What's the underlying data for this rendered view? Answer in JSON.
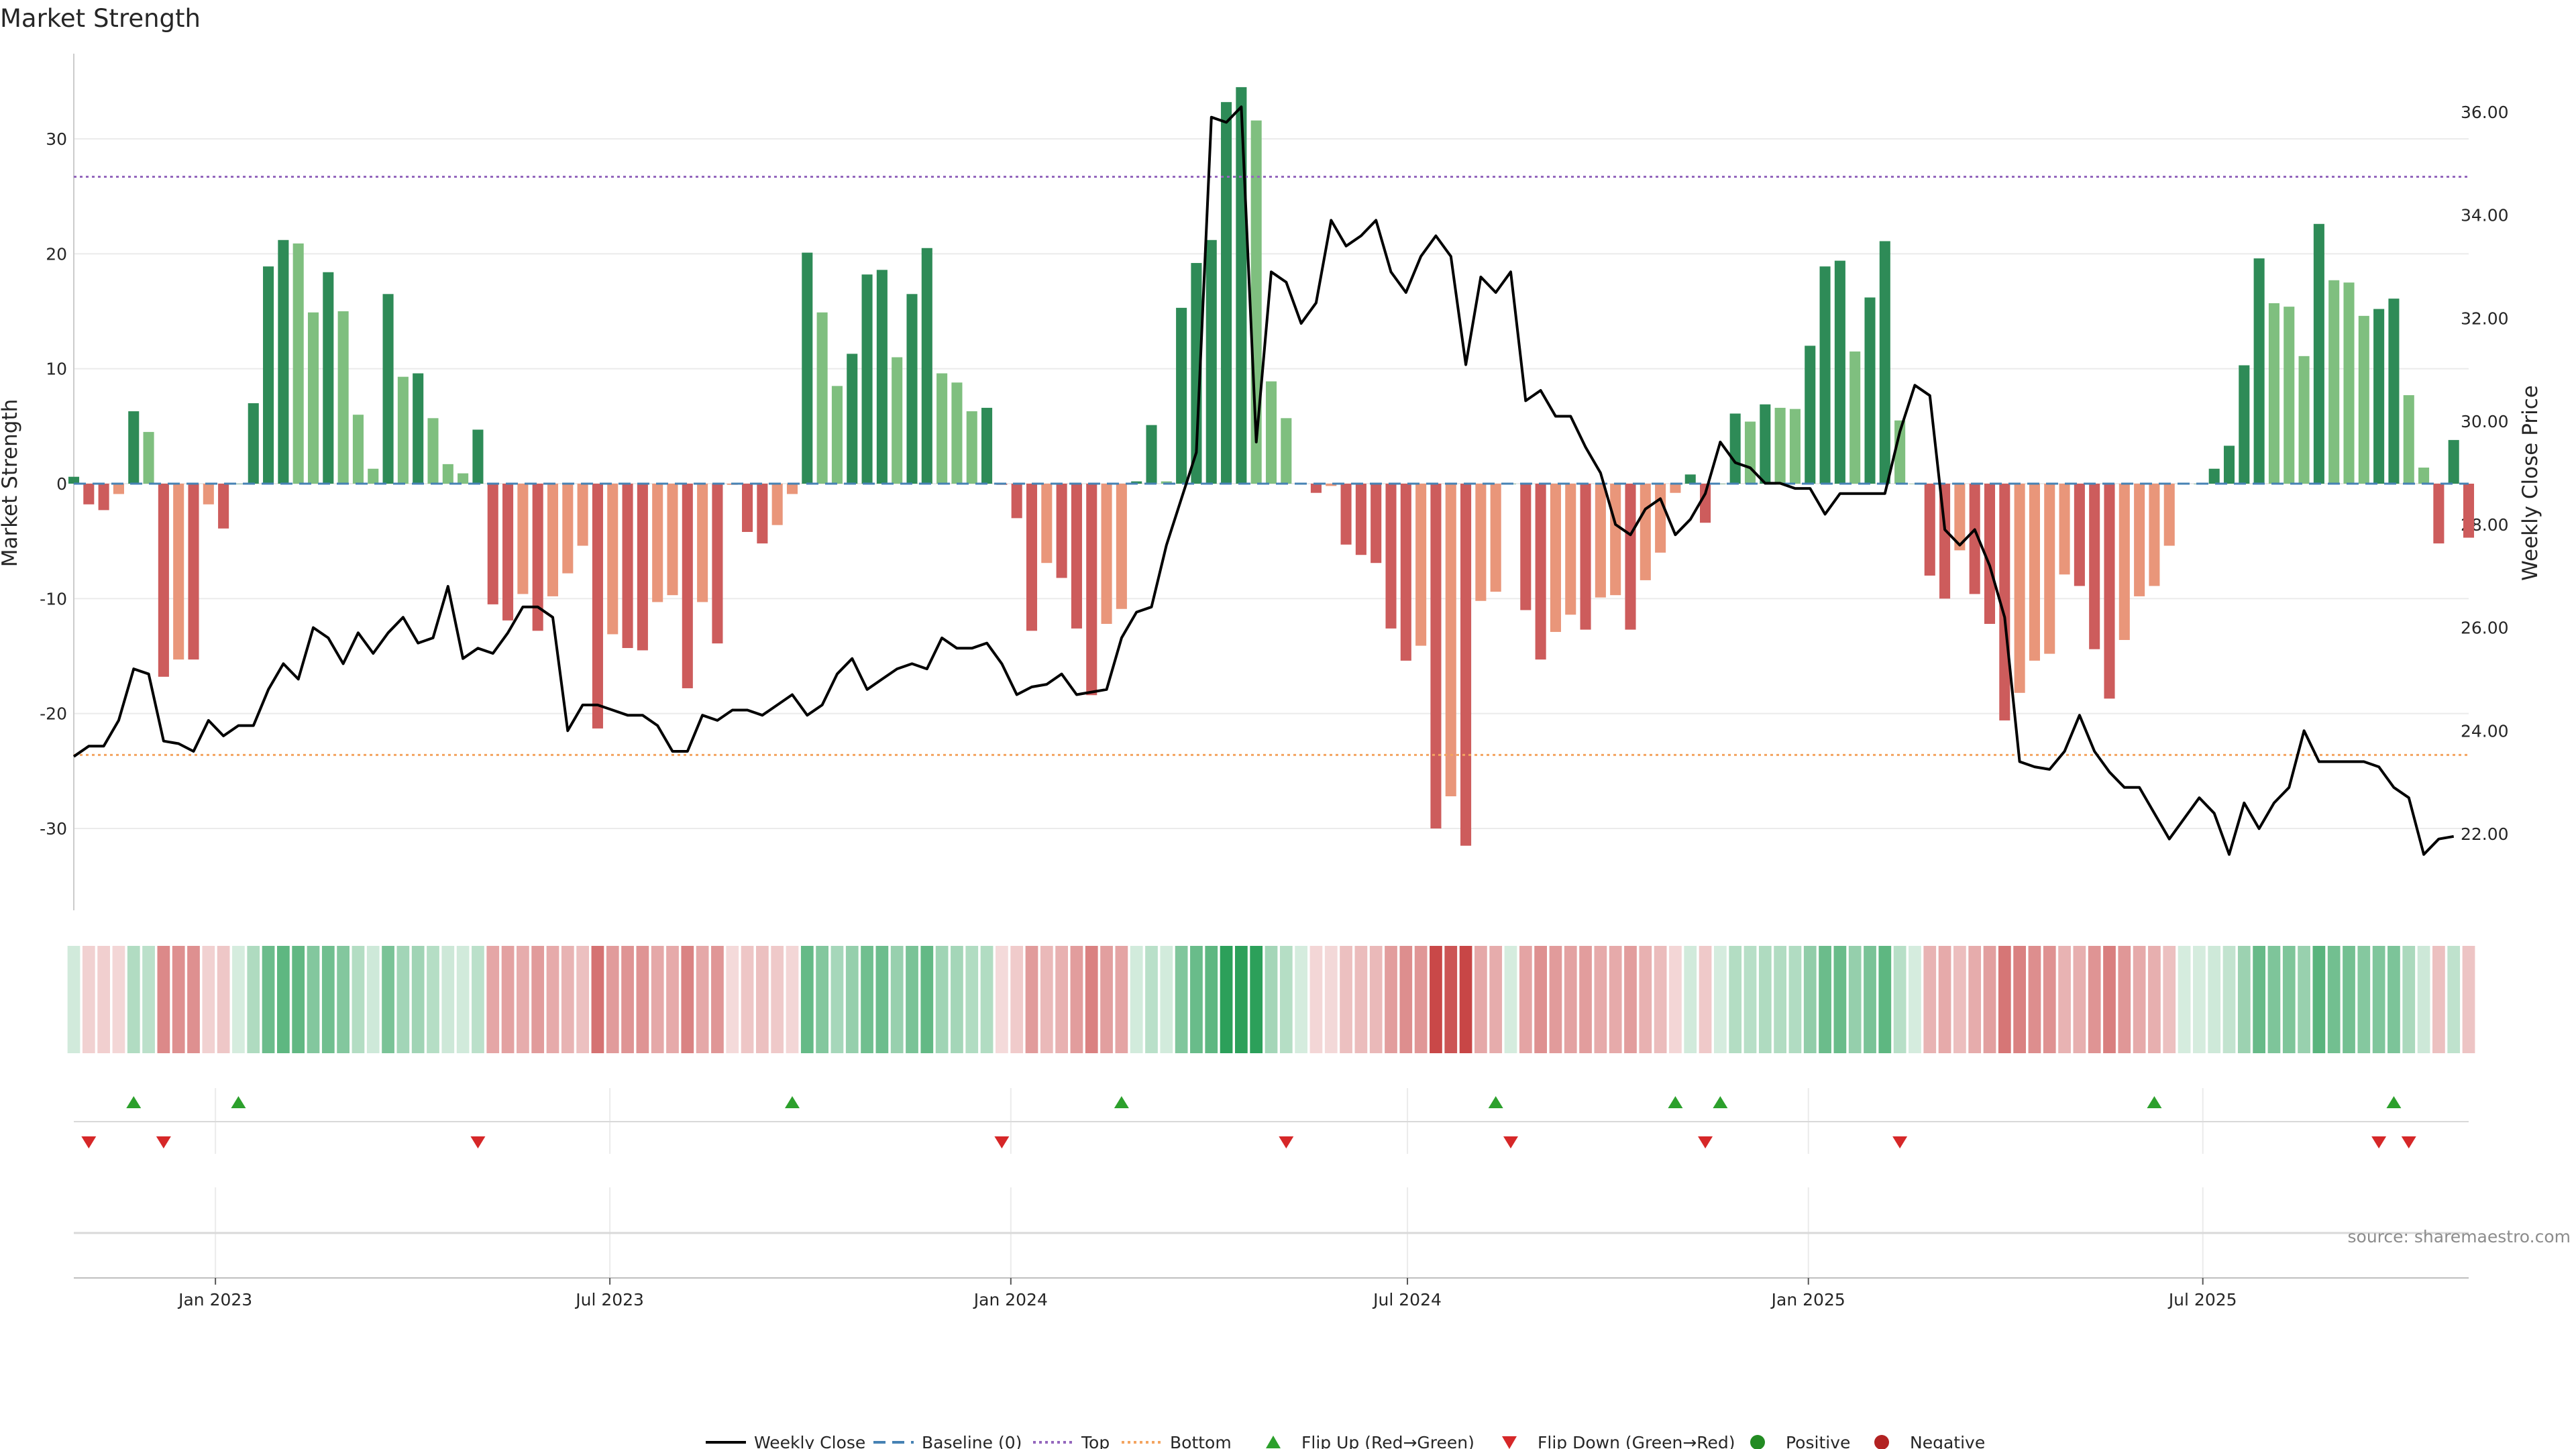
{
  "chart_data": {
    "type": "bar",
    "title": "Market Strength",
    "source": "source: sharemaestro.com",
    "xlabel": "",
    "ylabel_left": "Market Strength",
    "ylabel_right": "Weekly Close Price",
    "ylim_left": [
      -37.5,
      37.5
    ],
    "ylim_right": [
      20.7,
      36.9
    ],
    "y_ticks_left": [
      30,
      20,
      10,
      0,
      -10,
      -20,
      -30
    ],
    "y_ticks_right": [
      "36.00",
      "34.00",
      "32.00",
      "30.00",
      "28.00",
      "26.00",
      "24.00",
      "22.00"
    ],
    "x_ticks": [
      "Jan 2023",
      "Jul 2023",
      "Jan 2024",
      "Jul 2024",
      "Jan 2025",
      "Jul 2025"
    ],
    "date_range": [
      "2022-10-28",
      "2025-10-31"
    ],
    "frequency": "weekly",
    "top_threshold": 26.7,
    "bottom_threshold": -23.6,
    "grid": true,
    "legend_position": "bottom-center",
    "colors": {
      "strong_positive": "#2e8b57",
      "weak_positive": "#7fbf7f",
      "strong_negative": "#cd5c5c",
      "weak_negative": "#e9967a",
      "close_line": "#000000",
      "baseline": "#4682b4",
      "top_line": "#9467bd",
      "bottom_line": "#f4a460",
      "flip_up": "#2ca02c",
      "flip_down": "#d62728",
      "positive_dot": "#2ca02c",
      "negative_dot": "#d62728"
    },
    "strength": [
      0.6,
      -1.8,
      -2.3,
      -0.9,
      6.3,
      4.5,
      -16.8,
      -15.3,
      -15.3,
      -1.8,
      -3.9,
      0.0,
      7.0,
      18.9,
      21.2,
      20.9,
      14.9,
      18.4,
      15.0,
      6.0,
      1.3,
      16.5,
      9.3,
      9.6,
      5.7,
      1.7,
      0.9,
      4.7,
      -10.5,
      -11.9,
      -9.6,
      -12.8,
      -9.8,
      -7.8,
      -5.4,
      -21.3,
      -13.1,
      -14.3,
      -14.5,
      -10.3,
      -9.7,
      -17.8,
      -10.3,
      -13.9,
      -0.1,
      -4.2,
      -5.2,
      -3.6,
      -0.9,
      20.1,
      14.9,
      8.5,
      11.3,
      18.2,
      18.6,
      11.0,
      16.5,
      20.5,
      9.6,
      8.8,
      6.3,
      6.6,
      -0.1,
      -3.0,
      -12.8,
      -6.9,
      -8.2,
      -12.6,
      -18.4,
      -12.2,
      -10.9,
      0.2,
      5.1,
      0.2,
      15.3,
      19.2,
      21.2,
      33.2,
      34.5,
      31.6,
      8.9,
      5.7,
      0.0,
      -0.8,
      -0.2,
      -5.3,
      -6.2,
      -6.9,
      -12.6,
      -15.4,
      -14.1,
      -30.0,
      -27.2,
      -31.5,
      -10.2,
      -9.4,
      0.0,
      -11.0,
      -15.3,
      -12.9,
      -11.4,
      -12.7,
      -9.9,
      -9.7,
      -12.7,
      -8.4,
      -6.0,
      -0.8,
      0.8,
      -3.4,
      0.0,
      6.1,
      5.4,
      6.9,
      6.6,
      6.5,
      12.0,
      18.9,
      19.4,
      11.5,
      16.2,
      21.1,
      5.5,
      0.0,
      -8.0,
      -10.0,
      -5.8,
      -9.6,
      -12.2,
      -20.6,
      -18.2,
      -15.4,
      -14.8,
      -7.9,
      -8.9,
      -14.4,
      -18.7,
      -13.6,
      -9.8,
      -8.9,
      -5.4,
      0.0,
      0.0,
      1.3,
      3.3,
      10.3,
      19.6,
      15.7,
      15.4,
      11.1,
      22.6,
      17.7,
      17.5,
      14.6,
      15.2,
      16.1,
      7.7,
      1.4,
      -5.2,
      3.8,
      -4.7
    ],
    "weekly_close": [
      23.5,
      23.7,
      23.7,
      24.2,
      25.2,
      25.1,
      23.8,
      23.75,
      23.6,
      24.2,
      23.9,
      24.1,
      24.1,
      24.8,
      25.3,
      25.0,
      26.0,
      25.8,
      25.3,
      25.9,
      25.5,
      25.9,
      26.2,
      25.7,
      25.8,
      26.8,
      25.4,
      25.6,
      25.5,
      25.9,
      26.4,
      26.4,
      26.2,
      24.0,
      24.5,
      24.5,
      24.4,
      24.3,
      24.3,
      24.1,
      23.6,
      23.6,
      24.3,
      24.2,
      24.4,
      24.4,
      24.3,
      24.5,
      24.7,
      24.3,
      24.5,
      25.1,
      25.4,
      24.8,
      25.0,
      25.2,
      25.3,
      25.2,
      25.8,
      25.6,
      25.6,
      25.7,
      25.3,
      24.7,
      24.85,
      24.9,
      25.1,
      24.7,
      24.75,
      24.8,
      25.8,
      26.3,
      26.4,
      27.6,
      28.5,
      29.4,
      35.9,
      35.8,
      36.1,
      29.6,
      32.9,
      32.7,
      31.9,
      32.3,
      33.9,
      33.4,
      33.6,
      33.9,
      32.9,
      32.5,
      33.2,
      33.6,
      33.2,
      31.1,
      32.8,
      32.5,
      32.9,
      30.4,
      30.6,
      30.1,
      30.1,
      29.5,
      29.0,
      28.0,
      27.8,
      28.3,
      28.5,
      27.8,
      28.1,
      28.6,
      29.6,
      29.2,
      29.1,
      28.8,
      28.8,
      28.7,
      28.7,
      28.2,
      28.6,
      28.6,
      28.6,
      28.6,
      29.8,
      30.7,
      30.5,
      27.9,
      27.6,
      27.9,
      27.2,
      26.2,
      23.4,
      23.3,
      23.25,
      23.6,
      24.3,
      23.6,
      23.2,
      22.9,
      22.9,
      22.4,
      21.9,
      22.3,
      22.7,
      22.4,
      21.6,
      22.6,
      22.1,
      22.6,
      22.9,
      24.0,
      23.4,
      23.4,
      23.4,
      23.4,
      23.3,
      22.9,
      22.7,
      21.6,
      21.9,
      21.95
    ],
    "flip_up_weeks": [
      4,
      11,
      48,
      70,
      95,
      107,
      110,
      139,
      155
    ],
    "flip_down_weeks": [
      1,
      6,
      27,
      62,
      81,
      96,
      109,
      122,
      154,
      156
    ],
    "legend": [
      {
        "label": "Weekly Close",
        "symbol": "line-black"
      },
      {
        "label": "Baseline (0)",
        "symbol": "dash-blue"
      },
      {
        "label": "Top",
        "symbol": "dot-purple"
      },
      {
        "label": "Bottom",
        "symbol": "dot-orange"
      },
      {
        "label": "Flip Up (Red→Green)",
        "symbol": "triangle-up-green"
      },
      {
        "label": "Flip Down (Green→Red)",
        "symbol": "triangle-down-red"
      },
      {
        "label": "Positive",
        "symbol": "circle-green"
      },
      {
        "label": "Negative",
        "symbol": "circle-red"
      }
    ]
  }
}
